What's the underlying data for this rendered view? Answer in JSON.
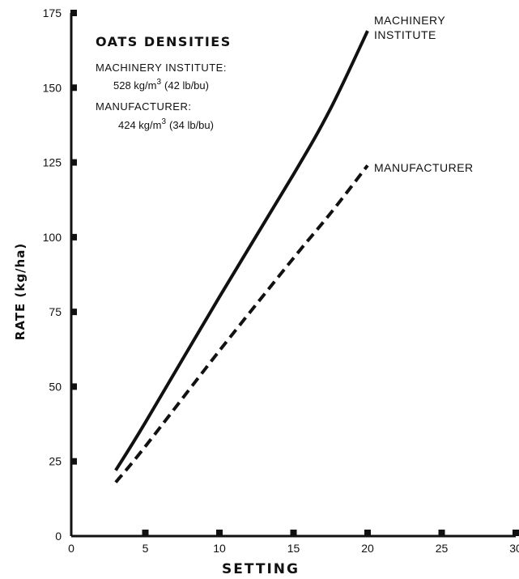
{
  "chart_data": {
    "type": "line",
    "xlabel": "SETTING",
    "ylabel": "RATE (kg/ha)",
    "xlim": [
      0,
      30
    ],
    "ylim": [
      0,
      175
    ],
    "x_ticks": [
      0,
      5,
      10,
      15,
      20,
      25,
      30
    ],
    "y_ticks": [
      0,
      25,
      50,
      75,
      100,
      125,
      150,
      175
    ],
    "grid": false,
    "series": [
      {
        "name": "MACHINERY INSTITUTE",
        "style": "solid",
        "x": [
          3,
          5,
          10,
          15,
          17.5,
          20
        ],
        "y": [
          22,
          38,
          80,
          121,
          143,
          169
        ]
      },
      {
        "name": "MANUFACTURER",
        "style": "dashed",
        "x": [
          3,
          5,
          10,
          15,
          17.5,
          20
        ],
        "y": [
          18,
          30,
          62,
          93,
          108,
          124
        ]
      }
    ],
    "annotation": {
      "title": "OATS DENSITIES",
      "machinery_label": "MACHINERY INSTITUTE:",
      "machinery_value": "528 kg/m",
      "machinery_exp": "3",
      "machinery_imperial": "(42 lb/bu)",
      "manufacturer_label": "MANUFACTURER:",
      "manufacturer_value": "424 kg/m",
      "manufacturer_exp": "3",
      "manufacturer_imperial": "(34 lb/bu)"
    },
    "series_labels": {
      "machinery_line1": "MACHINERY",
      "machinery_line2": "INSTITUTE",
      "manufacturer": "MANUFACTURER"
    }
  },
  "colors": {
    "ink": "#111111",
    "background": "#ffffff"
  }
}
